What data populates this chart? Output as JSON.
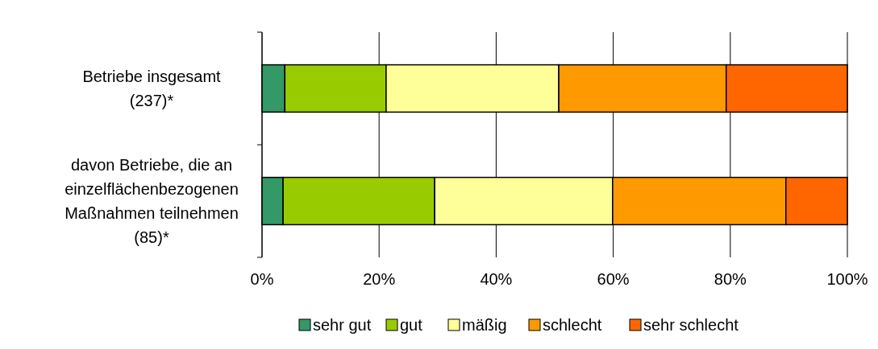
{
  "chart_data": {
    "type": "bar",
    "orientation": "horizontal",
    "stacked": true,
    "categories": [
      "Betriebe insgesamt\n(237)*",
      "davon Betriebe, die an\neinzelflächenbezogenen\nMaßnahmen teilnehmen\n(85)*"
    ],
    "series": [
      {
        "name": "sehr gut",
        "color": "#339966",
        "values": [
          3.9,
          3.6
        ]
      },
      {
        "name": "gut",
        "color": "#99cc00",
        "values": [
          17.3,
          25.9
        ]
      },
      {
        "name": "mäßig",
        "color": "#ffff99",
        "values": [
          29.5,
          30.4
        ]
      },
      {
        "name": "schlecht",
        "color": "#ff9900",
        "values": [
          28.6,
          29.6
        ]
      },
      {
        "name": "sehr schlecht",
        "color": "#ff6600",
        "values": [
          20.7,
          10.5
        ]
      }
    ],
    "xlim": [
      0,
      100
    ],
    "xticks": [
      {
        "value": 0,
        "label": "0%"
      },
      {
        "value": 20,
        "label": "20%"
      },
      {
        "value": 40,
        "label": "40%"
      },
      {
        "value": 60,
        "label": "60%"
      },
      {
        "value": 80,
        "label": "80%"
      },
      {
        "value": 100,
        "label": "100%"
      }
    ],
    "grid": "x",
    "legend": "bottom"
  }
}
